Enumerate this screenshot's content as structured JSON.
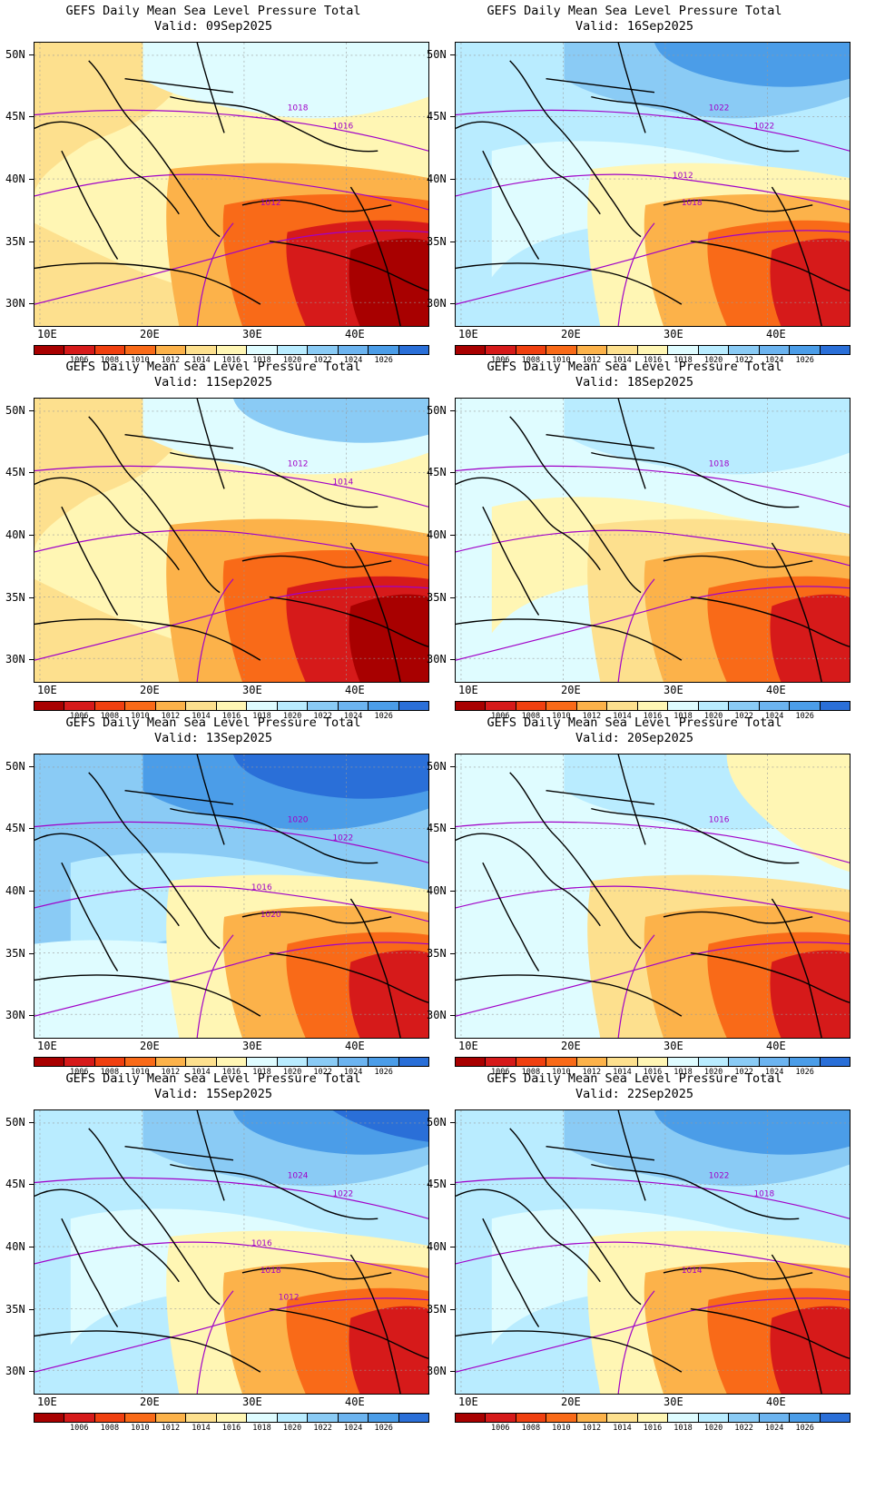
{
  "panels": [
    {
      "title": "GEFS Daily Mean Sea Level Pressure Total",
      "valid": "Valid: 09Sep2025",
      "bg": "#fff6b4",
      "isobar_labels": [
        "1018",
        "1016",
        "1012"
      ],
      "zones": [
        [
          "#fde08e",
          "w"
        ],
        [
          "#fcb24a",
          "se"
        ],
        [
          "#f96a18",
          "se2"
        ],
        [
          "#d61a1a",
          "se3"
        ],
        [
          "#a80000",
          "se4"
        ],
        [
          "#dffcff",
          "n"
        ]
      ]
    },
    {
      "title": "GEFS Daily Mean Sea Level Pressure Total",
      "valid": "Valid: 16Sep2025",
      "bg": "#b9ecff",
      "isobar_labels": [
        "1022",
        "1022",
        "1018",
        "1012"
      ],
      "zones": [
        [
          "#dffcff",
          "c"
        ],
        [
          "#8acbf5",
          "n"
        ],
        [
          "#4b9de8",
          "n2"
        ],
        [
          "#fff6b4",
          "se"
        ],
        [
          "#fcb24a",
          "se2"
        ],
        [
          "#f96a18",
          "se3"
        ],
        [
          "#d61a1a",
          "se4"
        ]
      ]
    },
    {
      "title": "GEFS Daily Mean Sea Level Pressure Total",
      "valid": "Valid: 11Sep2025",
      "bg": "#fff6b4",
      "isobar_labels": [
        "1012",
        "1014"
      ],
      "zones": [
        [
          "#fde08e",
          "w"
        ],
        [
          "#dffcff",
          "n"
        ],
        [
          "#8acbf5",
          "n2"
        ],
        [
          "#fcb24a",
          "se"
        ],
        [
          "#f96a18",
          "se2"
        ],
        [
          "#d61a1a",
          "se3"
        ],
        [
          "#a80000",
          "se4"
        ]
      ]
    },
    {
      "title": "GEFS Daily Mean Sea Level Pressure Total",
      "valid": "Valid: 18Sep2025",
      "bg": "#dffcff",
      "isobar_labels": [
        "1018"
      ],
      "zones": [
        [
          "#b9ecff",
          "n"
        ],
        [
          "#fff6b4",
          "c"
        ],
        [
          "#fde08e",
          "se"
        ],
        [
          "#fcb24a",
          "se2"
        ],
        [
          "#f96a18",
          "se3"
        ],
        [
          "#d61a1a",
          "se4"
        ]
      ]
    },
    {
      "title": "GEFS Daily Mean Sea Level Pressure Total",
      "valid": "Valid: 13Sep2025",
      "bg": "#8acbf5",
      "isobar_labels": [
        "1020",
        "1022",
        "1020",
        "1016"
      ],
      "zones": [
        [
          "#4b9de8",
          "n"
        ],
        [
          "#2a6fd8",
          "n2"
        ],
        [
          "#b9ecff",
          "c"
        ],
        [
          "#dffcff",
          "c2"
        ],
        [
          "#fff6b4",
          "se"
        ],
        [
          "#fcb24a",
          "se2"
        ],
        [
          "#f96a18",
          "se3"
        ],
        [
          "#d61a1a",
          "se4"
        ]
      ]
    },
    {
      "title": "GEFS Daily Mean Sea Level Pressure Total",
      "valid": "Valid: 20Sep2025",
      "bg": "#dffcff",
      "isobar_labels": [
        "1016"
      ],
      "zones": [
        [
          "#b9ecff",
          "n"
        ],
        [
          "#fff6b4",
          "ne"
        ],
        [
          "#fde08e",
          "se"
        ],
        [
          "#fcb24a",
          "se2"
        ],
        [
          "#f96a18",
          "se3"
        ],
        [
          "#d61a1a",
          "se4"
        ]
      ]
    },
    {
      "title": "GEFS Daily Mean Sea Level Pressure Total",
      "valid": "Valid: 15Sep2025",
      "bg": "#b9ecff",
      "isobar_labels": [
        "1024",
        "1022",
        "1018",
        "1016",
        "1012"
      ],
      "zones": [
        [
          "#8acbf5",
          "n"
        ],
        [
          "#4b9de8",
          "n2"
        ],
        [
          "#2a6fd8",
          "n3"
        ],
        [
          "#dffcff",
          "c"
        ],
        [
          "#fff6b4",
          "se"
        ],
        [
          "#fcb24a",
          "se2"
        ],
        [
          "#f96a18",
          "se3"
        ],
        [
          "#d61a1a",
          "se4"
        ]
      ]
    },
    {
      "title": "GEFS Daily Mean Sea Level Pressure Total",
      "valid": "Valid: 22Sep2025",
      "bg": "#b9ecff",
      "isobar_labels": [
        "1022",
        "1018",
        "1014"
      ],
      "zones": [
        [
          "#8acbf5",
          "n"
        ],
        [
          "#4b9de8",
          "n2"
        ],
        [
          "#dffcff",
          "c"
        ],
        [
          "#fff6b4",
          "se"
        ],
        [
          "#fcb24a",
          "se2"
        ],
        [
          "#f96a18",
          "se3"
        ],
        [
          "#d61a1a",
          "se4"
        ]
      ]
    }
  ],
  "axes": {
    "lat_labels": [
      "50N",
      "45N",
      "40N",
      "35N",
      "30N"
    ],
    "lon_labels": [
      "10E",
      "20E",
      "30E",
      "40E"
    ]
  },
  "colorbar": {
    "colors": [
      "#a80000",
      "#d61a1a",
      "#f04010",
      "#f96a18",
      "#fcb24a",
      "#fde08e",
      "#fff6b4",
      "#dffcff",
      "#b9ecff",
      "#8acbf5",
      "#6cb4f0",
      "#4b9de8",
      "#2a6fd8"
    ],
    "labels": [
      "1006",
      "1008",
      "1010",
      "1012",
      "1014",
      "1016",
      "1018",
      "1020",
      "1022",
      "1024",
      "1026"
    ]
  }
}
